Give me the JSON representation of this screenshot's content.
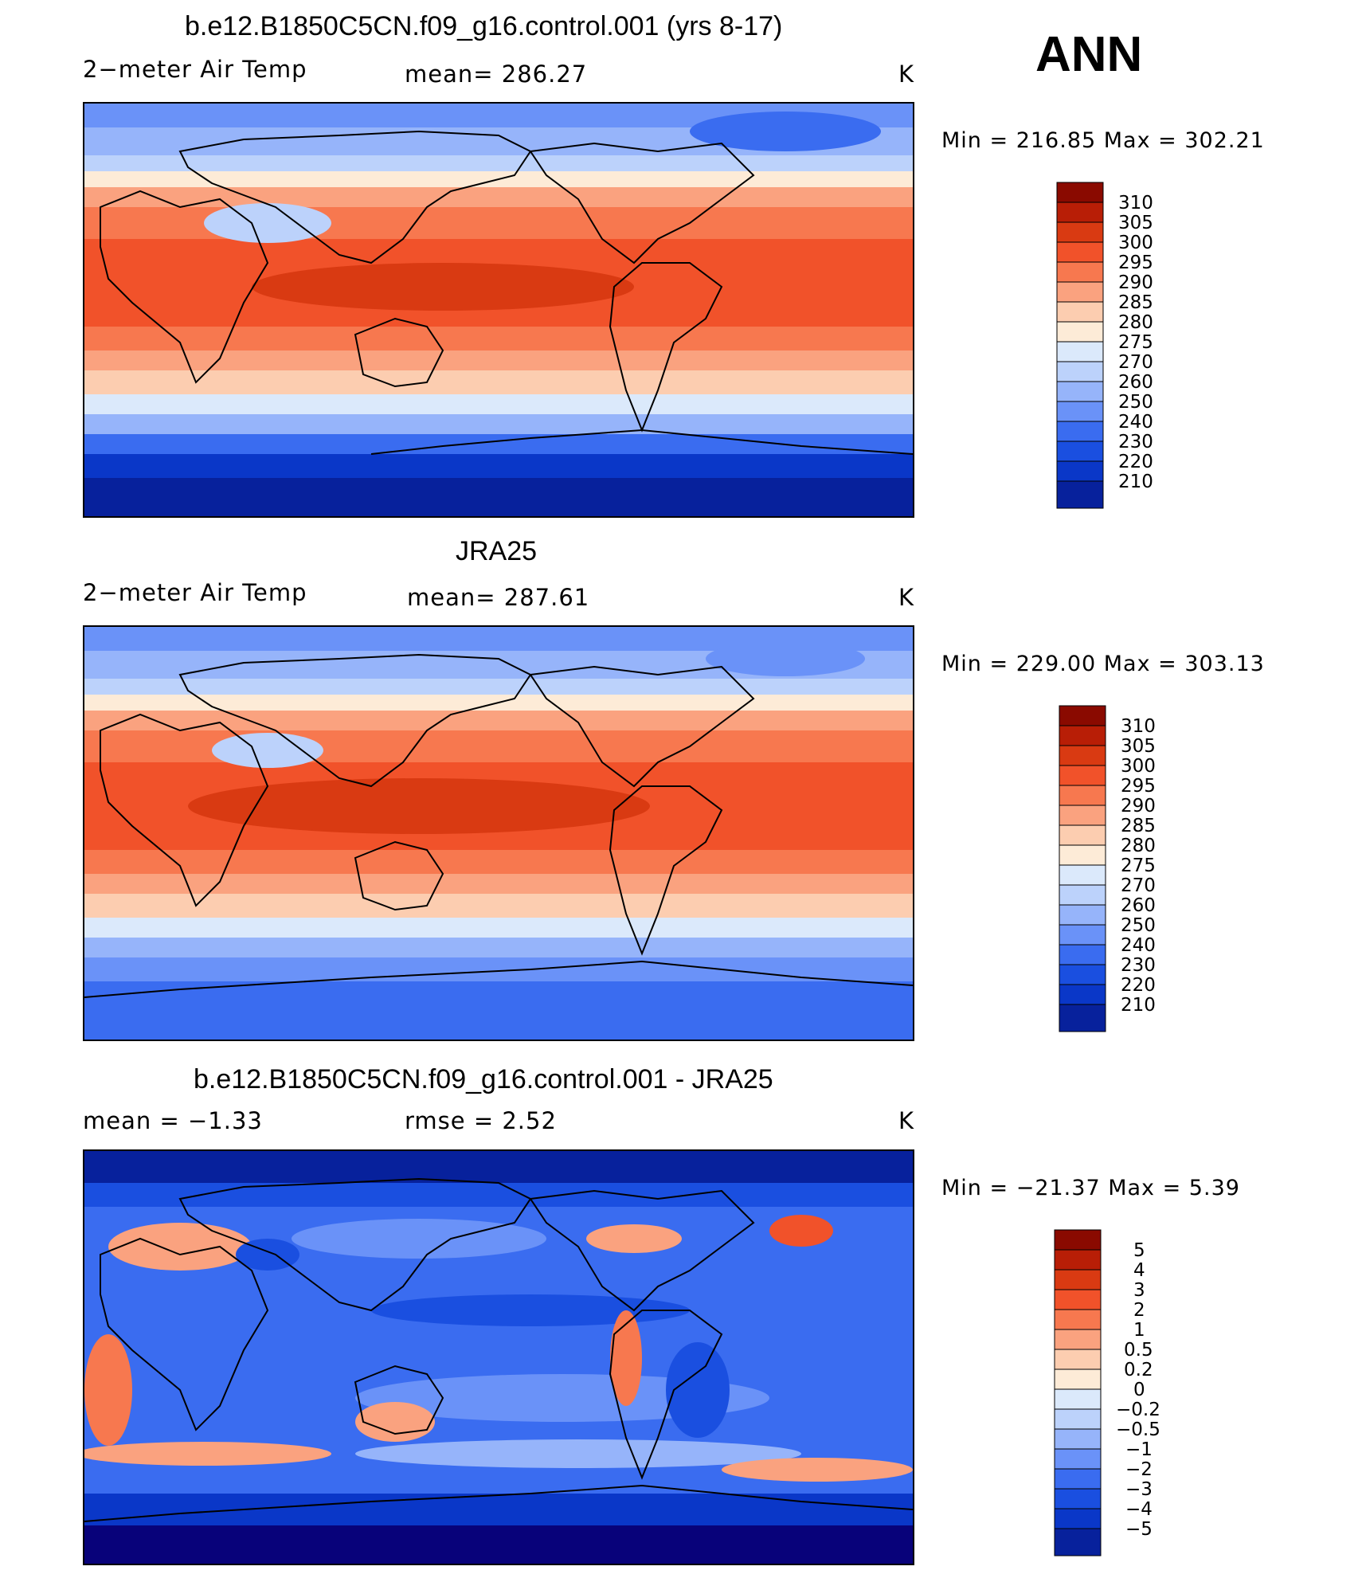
{
  "header": {
    "season": "ANN"
  },
  "colors": {
    "temp": [
      "#08027a",
      "#07219c",
      "#0a37c8",
      "#1a4fe0",
      "#3a6cf0",
      "#6a92f8",
      "#96b4fa",
      "#bcd2fb",
      "#dbe9fb",
      "#fdebd7",
      "#fccdb0",
      "#faa27f",
      "#f7784f",
      "#f1522a",
      "#d93a12",
      "#b81e06",
      "#8a0a00"
    ],
    "diff": [
      "#08027a",
      "#07219c",
      "#0a37c8",
      "#1a4fe0",
      "#3a6cf0",
      "#6a92f8",
      "#96b4fa",
      "#bcd2fb",
      "#dbe9fb",
      "#fdebd7",
      "#fccdb0",
      "#faa27f",
      "#f7784f",
      "#f1522a",
      "#d93a12",
      "#b81e06",
      "#8a0a00"
    ]
  },
  "panels": [
    {
      "title": "b.e12.B1850C5CN.f09_g16.control.001 (yrs 8-17)",
      "left": "2−meter Air Temp",
      "center": "mean=  286.27",
      "units": "K",
      "minmax": "Min  =  216.85  Max  =  302.21",
      "colorbar": {
        "labels": [
          "310",
          "305",
          "300",
          "295",
          "290",
          "285",
          "280",
          "275",
          "270",
          "260",
          "250",
          "240",
          "230",
          "220",
          "210"
        ]
      }
    },
    {
      "title": "JRA25",
      "left": "2−meter Air Temp",
      "center": "mean=  287.61",
      "units": "K",
      "minmax": "Min  =  229.00  Max  =  303.13",
      "colorbar": {
        "labels": [
          "310",
          "305",
          "300",
          "295",
          "290",
          "285",
          "280",
          "275",
          "270",
          "260",
          "250",
          "240",
          "230",
          "220",
          "210"
        ]
      }
    },
    {
      "title": "b.e12.B1850C5CN.f09_g16.control.001 - JRA25",
      "left": "mean  =    −1.33",
      "center": "rmse  =     2.52",
      "units": "K",
      "minmax": "Min  =  −21.37  Max  =      5.39",
      "colorbar": {
        "labels": [
          "5",
          "4",
          "3",
          "2",
          "1",
          "0.5",
          "0.2",
          "0",
          "−0.2",
          "−0.5",
          "−1",
          "−2",
          "−3",
          "−4",
          "−5"
        ]
      }
    }
  ]
}
